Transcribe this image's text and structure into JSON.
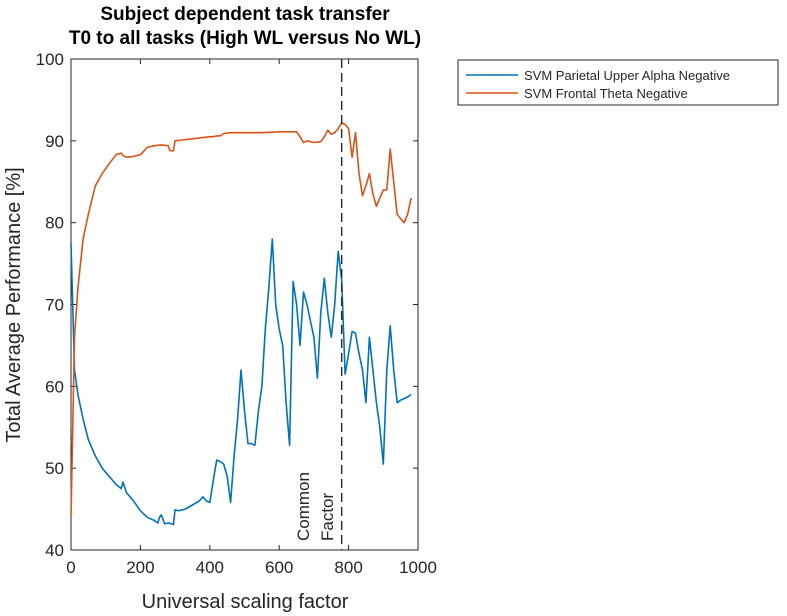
{
  "chart_data": {
    "type": "line",
    "title": [
      "Subject dependent task transfer",
      "T0 to all tasks (High WL versus No WL)"
    ],
    "xlabel": "Universal scaling factor",
    "ylabel": "Total Average Performance [%]",
    "xlim": [
      0,
      1000
    ],
    "ylim": [
      40,
      100
    ],
    "xticks": [
      0,
      200,
      400,
      600,
      800,
      1000
    ],
    "yticks": [
      40,
      50,
      60,
      70,
      80,
      90,
      100
    ],
    "grid": false,
    "legend_position": "outside-top-right",
    "annotation": {
      "lines": [
        "Common",
        "Factor"
      ],
      "x": 780
    },
    "vline_x": 780,
    "series": [
      {
        "name": "SVM Parietal Upper Alpha Negative",
        "color": "#0072BD",
        "x": [
          0,
          10,
          20,
          35,
          50,
          70,
          90,
          110,
          130,
          145,
          150,
          160,
          180,
          200,
          220,
          240,
          250,
          255,
          260,
          270,
          280,
          290,
          295,
          300,
          310,
          330,
          350,
          370,
          380,
          390,
          400,
          410,
          420,
          430,
          440,
          450,
          460,
          470,
          480,
          490,
          500,
          510,
          520,
          530,
          540,
          550,
          560,
          570,
          580,
          590,
          600,
          610,
          620,
          630,
          640,
          650,
          660,
          670,
          680,
          690,
          700,
          710,
          720,
          730,
          740,
          750,
          760,
          770,
          780,
          790,
          800,
          810,
          820,
          830,
          840,
          850,
          860,
          870,
          880,
          890,
          900,
          910,
          920,
          930,
          940,
          950,
          960,
          970,
          980
        ],
        "y": [
          77.5,
          62,
          59,
          56,
          53.5,
          51.5,
          50,
          49,
          48,
          47.5,
          48.3,
          47,
          46,
          44.8,
          44,
          43.6,
          43.3,
          44,
          44.3,
          43.2,
          43.3,
          43.2,
          43.1,
          44.9,
          44.8,
          45,
          45.5,
          46,
          46.5,
          46,
          45.8,
          48.5,
          51,
          50.8,
          50.5,
          49,
          45.8,
          51.5,
          56,
          62,
          57,
          53,
          53,
          52.8,
          57,
          60,
          67,
          72,
          78,
          70,
          67,
          65,
          58,
          52.8,
          72.8,
          70,
          65,
          71.5,
          70,
          68,
          66,
          61,
          69,
          73.2,
          69,
          66,
          70,
          76.5,
          73,
          61.5,
          64,
          66.7,
          66.5,
          64,
          62,
          58,
          66,
          62,
          58,
          55,
          50.5,
          62,
          67.4,
          62,
          58,
          58.3,
          58.5,
          58.7,
          59
        ]
      },
      {
        "name": "SVM Frontal Theta Negative",
        "color": "#D95319",
        "x": [
          0,
          10,
          20,
          35,
          50,
          70,
          90,
          110,
          130,
          145,
          150,
          160,
          180,
          200,
          220,
          240,
          260,
          280,
          285,
          290,
          295,
          300,
          320,
          340,
          360,
          380,
          400,
          410,
          420,
          430,
          440,
          460,
          500,
          550,
          600,
          650,
          660,
          670,
          680,
          700,
          720,
          730,
          740,
          750,
          760,
          770,
          780,
          790,
          800,
          810,
          820,
          830,
          840,
          850,
          860,
          870,
          880,
          890,
          900,
          910,
          920,
          930,
          940,
          950,
          960,
          970,
          980
        ],
        "y": [
          44,
          66,
          72,
          78,
          81,
          84.5,
          86,
          87.2,
          88.3,
          88.5,
          88.2,
          88,
          88.1,
          88.3,
          89.2,
          89.4,
          89.5,
          89.4,
          88.8,
          88.8,
          88.8,
          90,
          90.1,
          90.2,
          90.3,
          90.4,
          90.5,
          90.5,
          90.6,
          90.6,
          90.9,
          91,
          91,
          91,
          91.1,
          91.1,
          90.5,
          89.8,
          90,
          89.8,
          89.9,
          90.5,
          91.3,
          90.8,
          91,
          91.5,
          92.2,
          92,
          91.5,
          88,
          91,
          86,
          83.3,
          84.5,
          86,
          83.5,
          82,
          83,
          84,
          84,
          89,
          85,
          81,
          80.5,
          80,
          81,
          83
        ]
      }
    ]
  }
}
